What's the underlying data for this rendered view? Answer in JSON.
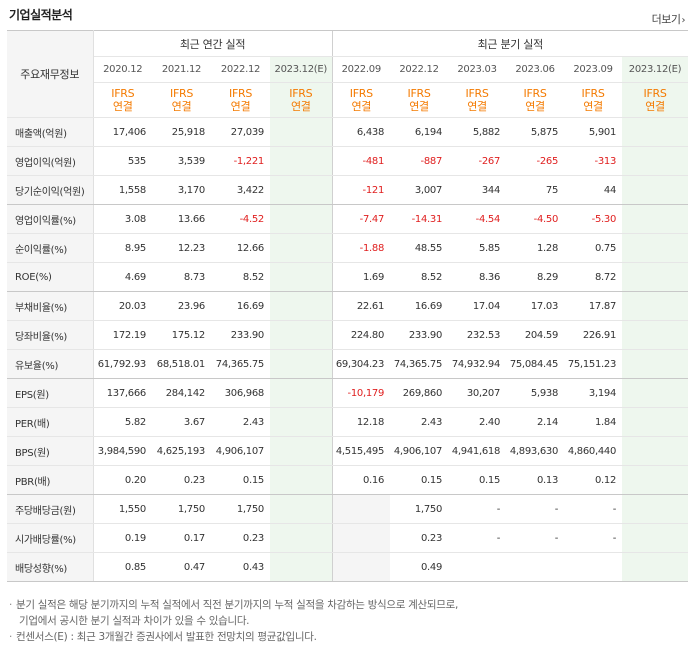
{
  "header": {
    "title": "기업실적분석",
    "more": "더보기",
    "label_head": "주요재무정보",
    "annual_group": "최근 연간 실적",
    "quarter_group": "최근 분기 실적",
    "ifrs_top": "IFRS",
    "ifrs_bottom": "연결"
  },
  "periods": [
    "2020.12",
    "2021.12",
    "2022.12",
    "2023.12(E)",
    "2022.09",
    "2022.12",
    "2023.03",
    "2023.06",
    "2023.09",
    "2023.12(E)"
  ],
  "rows": [
    {
      "label": "매출액(억원)",
      "values": [
        "17,406",
        "25,918",
        "27,039",
        "",
        "6,438",
        "6,194",
        "5,882",
        "5,875",
        "5,901",
        ""
      ]
    },
    {
      "label": "영업이익(억원)",
      "values": [
        "535",
        "3,539",
        "-1,221",
        "",
        "-481",
        "-887",
        "-267",
        "-265",
        "-313",
        ""
      ]
    },
    {
      "label": "당기순이익(억원)",
      "values": [
        "1,558",
        "3,170",
        "3,422",
        "",
        "-121",
        "3,007",
        "344",
        "75",
        "44",
        ""
      ]
    },
    {
      "label": "영업이익률(%)",
      "values": [
        "3.08",
        "13.66",
        "-4.52",
        "",
        "-7.47",
        "-14.31",
        "-4.54",
        "-4.50",
        "-5.30",
        ""
      ]
    },
    {
      "label": "순이익률(%)",
      "values": [
        "8.95",
        "12.23",
        "12.66",
        "",
        "-1.88",
        "48.55",
        "5.85",
        "1.28",
        "0.75",
        ""
      ]
    },
    {
      "label": "ROE(%)",
      "values": [
        "4.69",
        "8.73",
        "8.52",
        "",
        "1.69",
        "8.52",
        "8.36",
        "8.29",
        "8.72",
        ""
      ]
    },
    {
      "label": "부채비율(%)",
      "values": [
        "20.03",
        "23.96",
        "16.69",
        "",
        "22.61",
        "16.69",
        "17.04",
        "17.03",
        "17.87",
        ""
      ]
    },
    {
      "label": "당좌비율(%)",
      "values": [
        "172.19",
        "175.12",
        "233.90",
        "",
        "224.80",
        "233.90",
        "232.53",
        "204.59",
        "226.91",
        ""
      ]
    },
    {
      "label": "유보율(%)",
      "values": [
        "61,792.93",
        "68,518.01",
        "74,365.75",
        "",
        "69,304.23",
        "74,365.75",
        "74,932.94",
        "75,084.45",
        "75,151.23",
        ""
      ]
    },
    {
      "label": "EPS(원)",
      "values": [
        "137,666",
        "284,142",
        "306,968",
        "",
        "-10,179",
        "269,860",
        "30,207",
        "5,938",
        "3,194",
        ""
      ]
    },
    {
      "label": "PER(배)",
      "values": [
        "5.82",
        "3.67",
        "2.43",
        "",
        "12.18",
        "2.43",
        "2.40",
        "2.14",
        "1.84",
        ""
      ]
    },
    {
      "label": "BPS(원)",
      "values": [
        "3,984,590",
        "4,625,193",
        "4,906,107",
        "",
        "4,515,495",
        "4,906,107",
        "4,941,618",
        "4,893,630",
        "4,860,440",
        ""
      ]
    },
    {
      "label": "PBR(배)",
      "values": [
        "0.20",
        "0.23",
        "0.15",
        "",
        "0.16",
        "0.15",
        "0.15",
        "0.13",
        "0.12",
        ""
      ]
    },
    {
      "label": "주당배당금(원)",
      "values": [
        "1,550",
        "1,750",
        "1,750",
        "",
        "",
        "1,750",
        "-",
        "-",
        "-",
        ""
      ]
    },
    {
      "label": "시가배당률(%)",
      "values": [
        "0.19",
        "0.17",
        "0.23",
        "",
        "",
        "0.23",
        "-",
        "-",
        "-",
        ""
      ]
    },
    {
      "label": "배당성향(%)",
      "values": [
        "0.85",
        "0.47",
        "0.43",
        "",
        "",
        "0.49",
        "",
        "",
        "",
        ""
      ]
    }
  ],
  "notes": {
    "line1": "분기 실적은 해당 분기까지의 누적 실적에서 직전 분기까지의 누적 실적을 차감하는 방식으로 계산되므로,",
    "line2": "기업에서 공시한 분기 실적과 차이가 있을 수 있습니다.",
    "line3": "컨센서스(E) : 최근 3개월간 증권사에서 발표한 전망치의 평균값입니다."
  }
}
